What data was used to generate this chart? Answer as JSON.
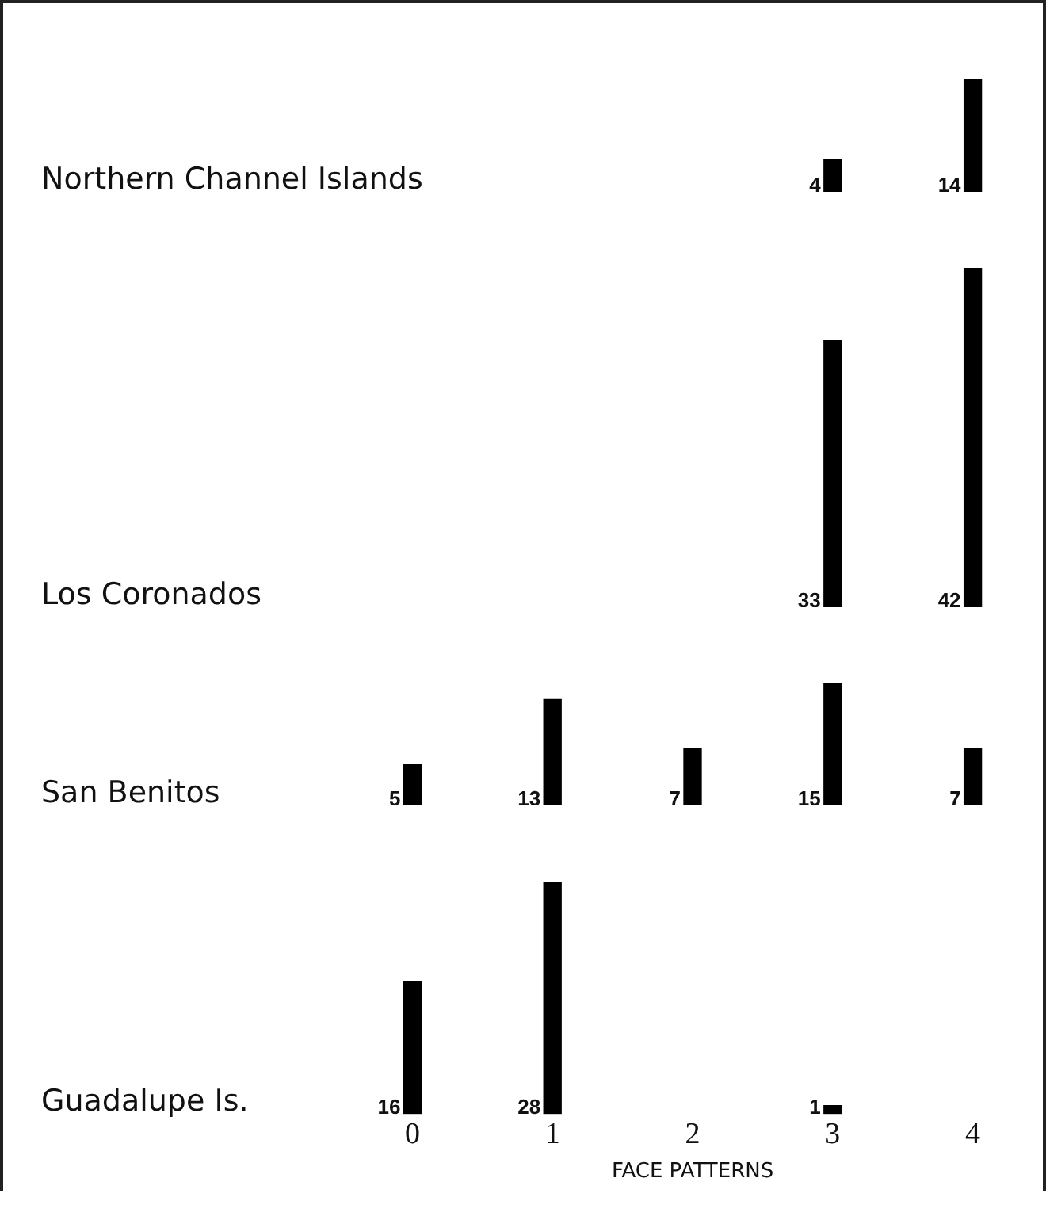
{
  "chart_data": [
    {
      "type": "bar",
      "title": "Northern Channel Islands",
      "categories": [
        "0",
        "1",
        "2",
        "3",
        "4"
      ],
      "values": [
        null,
        null,
        null,
        4,
        14
      ],
      "color": "#000000",
      "data_labels": true,
      "tick_labels": false
    },
    {
      "type": "bar",
      "title": "Los Coronados",
      "categories": [
        "0",
        "1",
        "2",
        "3",
        "4"
      ],
      "values": [
        null,
        null,
        null,
        33,
        42
      ],
      "color": "#000000",
      "data_labels": true,
      "tick_labels": false
    },
    {
      "type": "bar",
      "title": "San Benitos",
      "categories": [
        "0",
        "1",
        "2",
        "3",
        "4"
      ],
      "values": [
        5,
        13,
        7,
        15,
        7
      ],
      "color": "#000000",
      "data_labels": true,
      "tick_labels": false
    },
    {
      "type": "bar",
      "title": "Guadalupe Is.",
      "categories": [
        "0",
        "1",
        "2",
        "3",
        "4"
      ],
      "values": [
        16,
        28,
        null,
        1,
        null
      ],
      "color": "#000000",
      "data_labels": true,
      "tick_labels": "x",
      "xlabel": "FACE PATTERNS"
    }
  ]
}
